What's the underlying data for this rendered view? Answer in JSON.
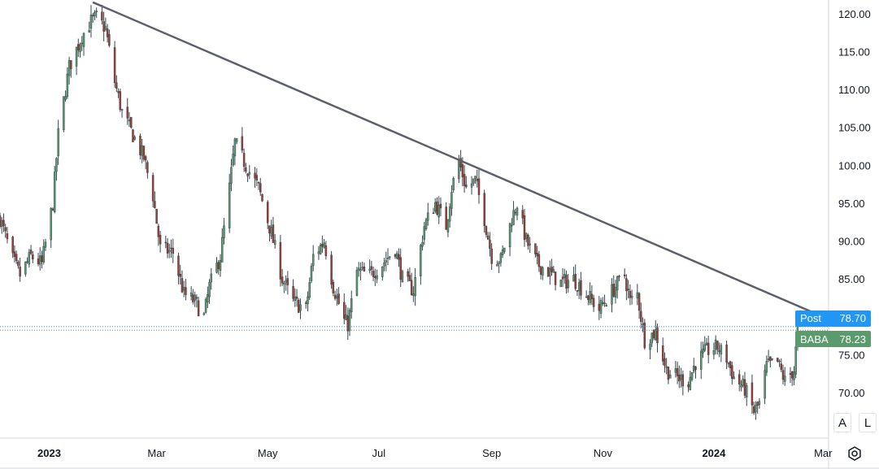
{
  "colors": {
    "up": "#5b9a6c",
    "down": "#a33a30",
    "wick": "#37474f",
    "trendline": "#5d606b",
    "post_badge": "#2196f3",
    "symbol_badge": "#5b9a6c",
    "grid_border": "#d1d4dc"
  },
  "badges": {
    "post": {
      "label": "Post",
      "value": "78.70"
    },
    "symbol": {
      "label": "BABA",
      "value": "78.23"
    }
  },
  "buttons": {
    "auto_scale": "A",
    "log_scale": "L",
    "settings_icon": "gear-icon"
  },
  "chart_data": {
    "type": "candlestick",
    "symbol": "BABA",
    "y_axis": {
      "ticks": [
        70,
        75,
        80,
        85,
        90,
        95,
        100,
        105,
        110,
        115,
        120
      ],
      "tick_labels": [
        "70.00",
        "75.00",
        "80.00",
        "85.00",
        "90.00",
        "95.00",
        "100.00",
        "105.00",
        "110.00",
        "115.00",
        "120.00"
      ],
      "range": [
        64.0,
        121.8
      ]
    },
    "x_axis": {
      "range": [
        "2022-12-05",
        "2024-03-04"
      ],
      "ticks": [
        {
          "date": "2023-01-01",
          "label": "2023",
          "bold": true
        },
        {
          "date": "2023-03-01",
          "label": "Mar"
        },
        {
          "date": "2023-05-01",
          "label": "May"
        },
        {
          "date": "2023-07-01",
          "label": "Jul"
        },
        {
          "date": "2023-09-01",
          "label": "Sep"
        },
        {
          "date": "2023-11-01",
          "label": "Nov"
        },
        {
          "date": "2024-01-01",
          "label": "2024",
          "bold": true
        },
        {
          "date": "2024-03-01",
          "label": "Mar"
        }
      ]
    },
    "trendline": {
      "start": {
        "date": "2023-01-25",
        "price": 121.5
      },
      "end": {
        "date": "2024-03-04",
        "price": 79.7
      }
    },
    "last_price": 78.23,
    "post_price": 78.7,
    "anchors": [
      [
        "2022-12-05",
        93.0
      ],
      [
        "2022-12-12",
        87.5
      ],
      [
        "2022-12-16",
        85.5
      ],
      [
        "2022-12-22",
        88.0
      ],
      [
        "2022-12-28",
        87.0
      ],
      [
        "2023-01-03",
        95.0
      ],
      [
        "2023-01-06",
        104.0
      ],
      [
        "2023-01-12",
        113.0
      ],
      [
        "2023-01-19",
        117.0
      ],
      [
        "2023-01-24",
        119.0
      ],
      [
        "2023-01-27",
        119.5
      ],
      [
        "2023-02-01",
        118.0
      ],
      [
        "2023-02-06",
        111.0
      ],
      [
        "2023-02-10",
        107.0
      ],
      [
        "2023-02-16",
        104.0
      ],
      [
        "2023-02-22",
        101.0
      ],
      [
        "2023-02-27",
        96.0
      ],
      [
        "2023-03-03",
        89.0
      ],
      [
        "2023-03-10",
        88.5
      ],
      [
        "2023-03-16",
        83.0
      ],
      [
        "2023-03-22",
        82.0
      ],
      [
        "2023-03-27",
        80.0
      ],
      [
        "2023-03-30",
        84.0
      ],
      [
        "2023-04-05",
        88.0
      ],
      [
        "2023-04-10",
        97.0
      ],
      [
        "2023-04-13",
        103.0
      ],
      [
        "2023-04-19",
        100.0
      ],
      [
        "2023-04-26",
        97.0
      ],
      [
        "2023-05-03",
        91.0
      ],
      [
        "2023-05-09",
        85.0
      ],
      [
        "2023-05-15",
        82.0
      ],
      [
        "2023-05-22",
        81.0
      ],
      [
        "2023-05-26",
        88.0
      ],
      [
        "2023-06-01",
        90.0
      ],
      [
        "2023-06-06",
        84.0
      ],
      [
        "2023-06-12",
        79.5
      ],
      [
        "2023-06-14",
        79.0
      ],
      [
        "2023-06-19",
        86.0
      ],
      [
        "2023-06-26",
        85.5
      ],
      [
        "2023-07-03",
        87.0
      ],
      [
        "2023-07-10",
        89.0
      ],
      [
        "2023-07-14",
        85.0
      ],
      [
        "2023-07-20",
        83.5
      ],
      [
        "2023-07-26",
        92.0
      ],
      [
        "2023-08-01",
        95.0
      ],
      [
        "2023-08-07",
        92.0
      ],
      [
        "2023-08-10",
        97.0
      ],
      [
        "2023-08-14",
        100.5
      ],
      [
        "2023-08-18",
        97.0
      ],
      [
        "2023-08-23",
        98.0
      ],
      [
        "2023-08-28",
        93.0
      ],
      [
        "2023-09-01",
        88.0
      ],
      [
        "2023-09-06",
        87.5
      ],
      [
        "2023-09-12",
        93.0
      ],
      [
        "2023-09-15",
        95.0
      ],
      [
        "2023-09-20",
        90.0
      ],
      [
        "2023-09-26",
        87.0
      ],
      [
        "2023-10-02",
        86.0
      ],
      [
        "2023-10-09",
        84.5
      ],
      [
        "2023-10-16",
        85.0
      ],
      [
        "2023-10-23",
        83.0
      ],
      [
        "2023-10-30",
        81.0
      ],
      [
        "2023-11-02",
        82.0
      ],
      [
        "2023-11-08",
        84.0
      ],
      [
        "2023-11-13",
        85.5
      ],
      [
        "2023-11-16",
        82.0
      ],
      [
        "2023-11-20",
        83.0
      ],
      [
        "2023-11-24",
        77.0
      ],
      [
        "2023-11-30",
        78.0
      ],
      [
        "2023-12-06",
        73.0
      ],
      [
        "2023-12-12",
        72.0
      ],
      [
        "2023-12-18",
        71.5
      ],
      [
        "2023-12-22",
        74.0
      ],
      [
        "2023-12-28",
        75.5
      ],
      [
        "2024-01-03",
        76.0
      ],
      [
        "2024-01-08",
        74.5
      ],
      [
        "2024-01-12",
        72.0
      ],
      [
        "2024-01-18",
        70.5
      ],
      [
        "2024-01-23",
        67.5
      ],
      [
        "2024-01-26",
        68.5
      ],
      [
        "2024-01-30",
        73.5
      ],
      [
        "2024-02-05",
        74.0
      ],
      [
        "2024-02-09",
        71.5
      ],
      [
        "2024-02-14",
        73.0
      ],
      [
        "2024-02-16",
        78.2
      ]
    ]
  }
}
